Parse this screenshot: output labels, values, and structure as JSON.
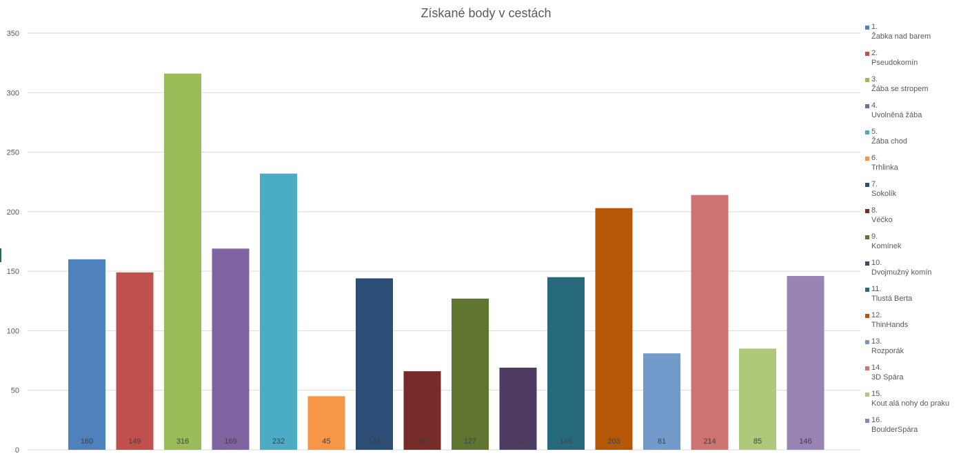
{
  "chart_data": {
    "type": "bar",
    "title": "Získané body v cestách",
    "xlabel": "",
    "ylabel": "",
    "ylim": [
      0,
      350
    ],
    "yticks": [
      0,
      50,
      100,
      150,
      200,
      250,
      300,
      350
    ],
    "grid": true,
    "legend_position": "right",
    "categories": [
      {
        "num": "1.",
        "name": "Žabka nad barem"
      },
      {
        "num": "2.",
        "name": "Pseudokomín"
      },
      {
        "num": "3.",
        "name": "Žába se stropem"
      },
      {
        "num": "4.",
        "name": "Uvolněná žába"
      },
      {
        "num": "5.",
        "name": "Žába chod"
      },
      {
        "num": "6.",
        "name": "Trhlinka"
      },
      {
        "num": "7.",
        "name": "Sokolík"
      },
      {
        "num": "8.",
        "name": "Véčko"
      },
      {
        "num": "9.",
        "name": "Komínek"
      },
      {
        "num": "10.",
        "name": "Dvojmužný komín"
      },
      {
        "num": "11.",
        "name": "Tlustá Berta"
      },
      {
        "num": "12.",
        "name": "ThinHands"
      },
      {
        "num": "13.",
        "name": "Rozporák"
      },
      {
        "num": "14.",
        "name": "3D Spára"
      },
      {
        "num": "15.",
        "name": "Kout alá nohy do praku"
      },
      {
        "num": "16.",
        "name": "BoulderSpára"
      }
    ],
    "values": [
      160,
      149,
      316,
      169,
      232,
      45,
      144,
      66,
      127,
      69,
      145,
      203,
      81,
      214,
      85,
      146
    ],
    "colors": [
      "#4f81bd",
      "#c0504d",
      "#9bbb59",
      "#8064a2",
      "#4bacc6",
      "#f79646",
      "#2c4d75",
      "#772c2a",
      "#5f7530",
      "#4d3b62",
      "#276a7c",
      "#b65708",
      "#729aca",
      "#cd7371",
      "#afc97a",
      "#9983b5"
    ]
  }
}
